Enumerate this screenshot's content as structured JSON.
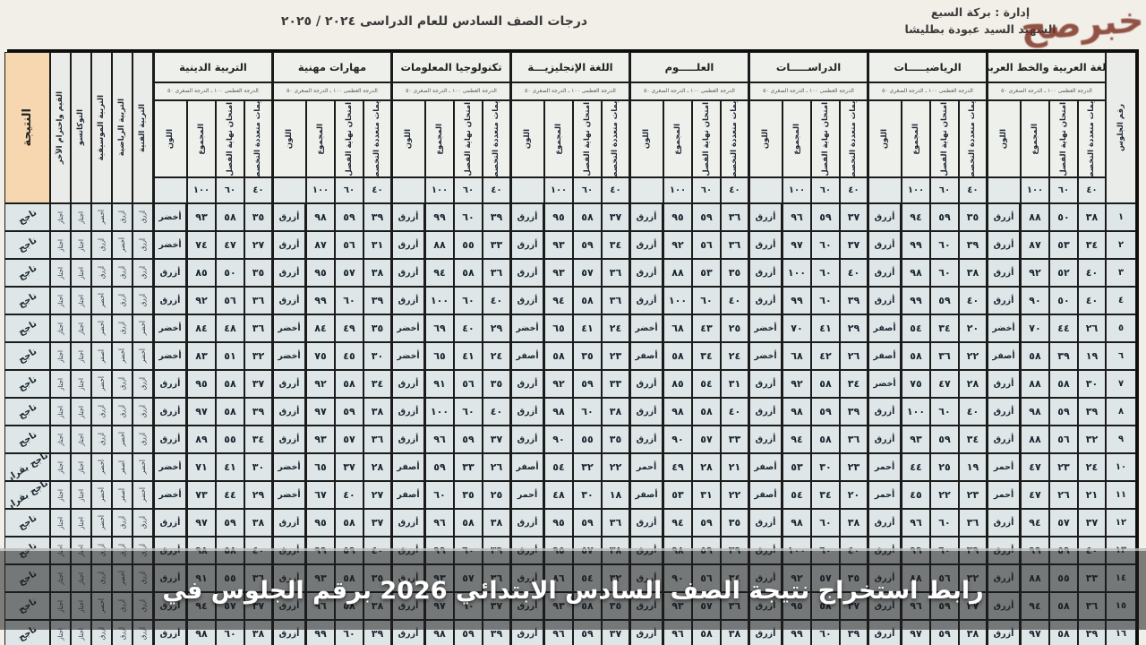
{
  "page": {
    "watermark": "خبرصح",
    "caption": "رابط استخراج نتيجة الصف السادس الابتدائي 2026 برقم الجلوس في"
  },
  "header": {
    "title": "درجات الصف السادس للعام الدراسى ٢٠٢٤ / ٢٠٢٥",
    "admin_line": "إدارة : بركة السبع",
    "school_line": "الشهيد السيد عبودة بطليشا"
  },
  "colors": {
    "paper": "#f1efe8",
    "cell": "#dfe6e7",
    "peach": "#f6d7af",
    "overlay": "rgba(30,30,30,0.55)",
    "watermark": "#7a2a1c"
  },
  "table": {
    "seat_header": "رقم الجلوس",
    "result_header": "النتيجة",
    "fine_print": "الدرجة العظمى ١٠٠ ـ الدرجة الصغرى ٥٠",
    "sub_headers": [
      "تقويمات متعددة التخصصات",
      "امتحان نهاية الفصل",
      "المجموع",
      "اللون"
    ],
    "max_marks": [
      "٤٠",
      "٦٠",
      "١٠٠",
      ""
    ],
    "subjects": [
      "اللغة العربية والخط العربي",
      "الرياضيـــــات",
      "الدراســـــات",
      "العلـــــوم",
      "اللغة الإنجليزيـــة",
      "تكنولوجيا المعلومات",
      "مهارات مهنية",
      "التربية الدينية"
    ],
    "activity_headers": [
      "التربية الفنية",
      "التربية الرياضية",
      "التربية الموسيقية",
      "التوكاتسو",
      "القيم واحترام الآخر"
    ],
    "rows": [
      {
        "seat": "١",
        "result": "ناجح",
        "activities": [
          "أزرق",
          "أزرق",
          "أخضر",
          "اجتاز",
          "اجتاز"
        ],
        "subjects": [
          [
            "٣٨",
            "٥٠",
            "٨٨",
            "أزرق"
          ],
          [
            "٣٥",
            "٥٩",
            "٩٤",
            "أزرق"
          ],
          [
            "٣٧",
            "٥٩",
            "٩٦",
            "أزرق"
          ],
          [
            "٣٦",
            "٥٩",
            "٩٥",
            "أزرق"
          ],
          [
            "٣٧",
            "٥٨",
            "٩٥",
            "أزرق"
          ],
          [
            "٣٩",
            "٦٠",
            "٩٩",
            "أزرق"
          ],
          [
            "٣٩",
            "٥٩",
            "٩٨",
            "أزرق"
          ],
          [
            "٣٥",
            "٥٨",
            "٩٣",
            "أخضر"
          ]
        ]
      },
      {
        "seat": "٢",
        "result": "ناجح",
        "activities": [
          "أزرق",
          "أخضر",
          "أزرق",
          "اجتاز",
          "اجتاز"
        ],
        "subjects": [
          [
            "٣٤",
            "٥٣",
            "٨٧",
            "أزرق"
          ],
          [
            "٣٩",
            "٦٠",
            "٩٩",
            "أزرق"
          ],
          [
            "٣٧",
            "٦٠",
            "٩٧",
            "أزرق"
          ],
          [
            "٣٦",
            "٥٦",
            "٩٢",
            "أزرق"
          ],
          [
            "٣٤",
            "٥٩",
            "٩٣",
            "أزرق"
          ],
          [
            "٣٣",
            "٥٥",
            "٨٨",
            "أزرق"
          ],
          [
            "٣١",
            "٥٦",
            "٨٧",
            "أزرق"
          ],
          [
            "٢٧",
            "٤٧",
            "٧٤",
            "أخضر"
          ]
        ]
      },
      {
        "seat": "٣",
        "result": "ناجح",
        "activities": [
          "أزرق",
          "أزرق",
          "أزرق",
          "اجتاز",
          "اجتاز"
        ],
        "subjects": [
          [
            "٤٠",
            "٥٢",
            "٩٢",
            "أزرق"
          ],
          [
            "٣٨",
            "٦٠",
            "٩٨",
            "أزرق"
          ],
          [
            "٤٠",
            "٦٠",
            "١٠٠",
            "أزرق"
          ],
          [
            "٣٥",
            "٥٣",
            "٨٨",
            "أزرق"
          ],
          [
            "٣٦",
            "٥٧",
            "٩٣",
            "أزرق"
          ],
          [
            "٣٦",
            "٥٨",
            "٩٤",
            "أزرق"
          ],
          [
            "٣٨",
            "٥٧",
            "٩٥",
            "أزرق"
          ],
          [
            "٣٥",
            "٥٠",
            "٨٥",
            "أزرق"
          ]
        ]
      },
      {
        "seat": "٤",
        "result": "ناجح",
        "activities": [
          "أزرق",
          "أزرق",
          "أخضر",
          "اجتاز",
          "اجتاز"
        ],
        "subjects": [
          [
            "٤٠",
            "٥٠",
            "٩٠",
            "أزرق"
          ],
          [
            "٤٠",
            "٥٩",
            "٩٩",
            "أزرق"
          ],
          [
            "٣٩",
            "٦٠",
            "٩٩",
            "أزرق"
          ],
          [
            "٤٠",
            "٦٠",
            "١٠٠",
            "أزرق"
          ],
          [
            "٣٦",
            "٥٨",
            "٩٤",
            "أزرق"
          ],
          [
            "٤٠",
            "٦٠",
            "١٠٠",
            "أزرق"
          ],
          [
            "٣٩",
            "٦٠",
            "٩٩",
            "أزرق"
          ],
          [
            "٣٦",
            "٥٦",
            "٩٢",
            "أزرق"
          ]
        ]
      },
      {
        "seat": "٥",
        "result": "ناجح",
        "activities": [
          "أخضر",
          "أزرق",
          "أخضر",
          "اجتاز",
          "اجتاز"
        ],
        "subjects": [
          [
            "٢٦",
            "٤٤",
            "٧٠",
            "أخضر"
          ],
          [
            "٢٠",
            "٣٤",
            "٥٤",
            "أصفر"
          ],
          [
            "٢٩",
            "٤١",
            "٧٠",
            "أخضر"
          ],
          [
            "٢٥",
            "٤٣",
            "٦٨",
            "أخضر"
          ],
          [
            "٢٤",
            "٤١",
            "٦٥",
            "أخضر"
          ],
          [
            "٢٩",
            "٤٠",
            "٦٩",
            "أخضر"
          ],
          [
            "٣٥",
            "٤٩",
            "٨٤",
            "أخضر"
          ],
          [
            "٣٦",
            "٤٨",
            "٨٤",
            "أخضر"
          ]
        ]
      },
      {
        "seat": "٦",
        "result": "ناجح",
        "activities": [
          "أخضر",
          "أخضر",
          "أصفر",
          "اجتاز",
          "اجتاز"
        ],
        "subjects": [
          [
            "١٩",
            "٣٩",
            "٥٨",
            "أصفر"
          ],
          [
            "٢٢",
            "٣٦",
            "٥٨",
            "أصفر"
          ],
          [
            "٢٦",
            "٤٢",
            "٦٨",
            "أخضر"
          ],
          [
            "٢٤",
            "٣٤",
            "٥٨",
            "أصفر"
          ],
          [
            "٢٣",
            "٣٥",
            "٥٨",
            "أصفر"
          ],
          [
            "٢٤",
            "٤١",
            "٦٥",
            "أخضر"
          ],
          [
            "٣٠",
            "٤٥",
            "٧٥",
            "أخضر"
          ],
          [
            "٣٢",
            "٥١",
            "٨٣",
            "أخضر"
          ]
        ]
      },
      {
        "seat": "٧",
        "result": "ناجح",
        "activities": [
          "أزرق",
          "أزرق",
          "أخضر",
          "اجتاز",
          "اجتاز"
        ],
        "subjects": [
          [
            "٣٠",
            "٥٨",
            "٨٨",
            "أزرق"
          ],
          [
            "٢٨",
            "٤٧",
            "٧٥",
            "أخضر"
          ],
          [
            "٣٤",
            "٥٨",
            "٩٢",
            "أزرق"
          ],
          [
            "٣١",
            "٥٤",
            "٨٥",
            "أزرق"
          ],
          [
            "٣٣",
            "٥٩",
            "٩٢",
            "أزرق"
          ],
          [
            "٣٥",
            "٥٦",
            "٩١",
            "أزرق"
          ],
          [
            "٣٤",
            "٥٨",
            "٩٢",
            "أزرق"
          ],
          [
            "٣٧",
            "٥٨",
            "٩٥",
            "أزرق"
          ]
        ]
      },
      {
        "seat": "٨",
        "result": "ناجح",
        "activities": [
          "أزرق",
          "أزرق",
          "أزرق",
          "اجتاز",
          "اجتاز"
        ],
        "subjects": [
          [
            "٣٩",
            "٥٩",
            "٩٨",
            "أزرق"
          ],
          [
            "٤٠",
            "٦٠",
            "١٠٠",
            "أزرق"
          ],
          [
            "٣٩",
            "٥٩",
            "٩٨",
            "أزرق"
          ],
          [
            "٤٠",
            "٥٨",
            "٩٨",
            "أزرق"
          ],
          [
            "٣٨",
            "٦٠",
            "٩٨",
            "أزرق"
          ],
          [
            "٤٠",
            "٦٠",
            "١٠٠",
            "أزرق"
          ],
          [
            "٣٨",
            "٥٩",
            "٩٧",
            "أزرق"
          ],
          [
            "٣٩",
            "٥٨",
            "٩٧",
            "أزرق"
          ]
        ]
      },
      {
        "seat": "٩",
        "result": "ناجح",
        "activities": [
          "أزرق",
          "أخضر",
          "أزرق",
          "اجتاز",
          "اجتاز"
        ],
        "subjects": [
          [
            "٣٢",
            "٥٦",
            "٨٨",
            "أزرق"
          ],
          [
            "٣٤",
            "٥٩",
            "٩٣",
            "أزرق"
          ],
          [
            "٣٦",
            "٥٨",
            "٩٤",
            "أزرق"
          ],
          [
            "٣٣",
            "٥٧",
            "٩٠",
            "أزرق"
          ],
          [
            "٣٥",
            "٥٥",
            "٩٠",
            "أزرق"
          ],
          [
            "٣٧",
            "٥٩",
            "٩٦",
            "أزرق"
          ],
          [
            "٣٦",
            "٥٧",
            "٩٣",
            "أزرق"
          ],
          [
            "٣٤",
            "٥٥",
            "٨٩",
            "أزرق"
          ]
        ]
      },
      {
        "seat": "١٠",
        "result": "ناجح بقرار",
        "activities": [
          "أخضر",
          "أصفر",
          "أخضر",
          "اجتاز",
          "اجتاز"
        ],
        "subjects": [
          [
            "٢٤",
            "٢٣",
            "٤٧",
            "أحمر"
          ],
          [
            "١٩",
            "٢٥",
            "٤٤",
            "أحمر"
          ],
          [
            "٢٣",
            "٣٠",
            "٥٣",
            "أصفر"
          ],
          [
            "٢١",
            "٢٨",
            "٤٩",
            "أحمر"
          ],
          [
            "٢٢",
            "٣٢",
            "٥٤",
            "أصفر"
          ],
          [
            "٢٦",
            "٣٣",
            "٥٩",
            "أصفر"
          ],
          [
            "٢٨",
            "٣٧",
            "٦٥",
            "أخضر"
          ],
          [
            "٣٠",
            "٤١",
            "٧١",
            "أخضر"
          ]
        ]
      },
      {
        "seat": "١١",
        "result": "ناجح بقرار",
        "activities": [
          "أخضر",
          "أصفر",
          "أخضر",
          "اجتاز",
          "اجتاز"
        ],
        "subjects": [
          [
            "٢١",
            "٢٦",
            "٤٧",
            "أحمر"
          ],
          [
            "٢٣",
            "٢٢",
            "٤٥",
            "أحمر"
          ],
          [
            "٢٠",
            "٣٤",
            "٥٤",
            "أصفر"
          ],
          [
            "٢٢",
            "٣١",
            "٥٣",
            "أصفر"
          ],
          [
            "١٨",
            "٣٠",
            "٤٨",
            "أحمر"
          ],
          [
            "٢٥",
            "٣٥",
            "٦٠",
            "أصفر"
          ],
          [
            "٢٧",
            "٤٠",
            "٦٧",
            "أخضر"
          ],
          [
            "٢٩",
            "٤٤",
            "٧٣",
            "أخضر"
          ]
        ]
      },
      {
        "seat": "١٢",
        "result": "ناجح",
        "activities": [
          "أزرق",
          "أزرق",
          "أخضر",
          "اجتاز",
          "اجتاز"
        ],
        "subjects": [
          [
            "٣٧",
            "٥٧",
            "٩٤",
            "أزرق"
          ],
          [
            "٣٦",
            "٦٠",
            "٩٦",
            "أزرق"
          ],
          [
            "٣٨",
            "٦٠",
            "٩٨",
            "أزرق"
          ],
          [
            "٣٥",
            "٥٩",
            "٩٤",
            "أزرق"
          ],
          [
            "٣٦",
            "٥٩",
            "٩٥",
            "أزرق"
          ],
          [
            "٣٨",
            "٥٨",
            "٩٦",
            "أزرق"
          ],
          [
            "٣٧",
            "٥٨",
            "٩٥",
            "أزرق"
          ],
          [
            "٣٨",
            "٥٩",
            "٩٧",
            "أزرق"
          ]
        ]
      },
      {
        "seat": "١٣",
        "result": "ناجح",
        "activities": [
          "أزرق",
          "أزرق",
          "أزرق",
          "اجتاز",
          "اجتاز"
        ],
        "subjects": [
          [
            "٤٠",
            "٥٩",
            "٩٩",
            "أزرق"
          ],
          [
            "٣٩",
            "٦٠",
            "٩٩",
            "أزرق"
          ],
          [
            "٤٠",
            "٦٠",
            "١٠٠",
            "أزرق"
          ],
          [
            "٣٩",
            "٥٩",
            "٩٨",
            "أزرق"
          ],
          [
            "٣٨",
            "٥٧",
            "٩٥",
            "أزرق"
          ],
          [
            "٣٩",
            "٦٠",
            "٩٩",
            "أزرق"
          ],
          [
            "٤٠",
            "٥٩",
            "٩٩",
            "أزرق"
          ],
          [
            "٤٠",
            "٥٨",
            "٩٨",
            "أزرق"
          ]
        ]
      },
      {
        "seat": "١٤",
        "result": "ناجح",
        "activities": [
          "أزرق",
          "أخضر",
          "أزرق",
          "اجتاز",
          "اجتاز"
        ],
        "subjects": [
          [
            "٣٣",
            "٥٥",
            "٨٨",
            "أزرق"
          ],
          [
            "٣٢",
            "٥٦",
            "٨٨",
            "أزرق"
          ],
          [
            "٣٥",
            "٥٧",
            "٩٢",
            "أزرق"
          ],
          [
            "٣٤",
            "٥٦",
            "٩٠",
            "أزرق"
          ],
          [
            "٣٢",
            "٥٤",
            "٨٦",
            "أزرق"
          ],
          [
            "٣٦",
            "٥٧",
            "٩٣",
            "أزرق"
          ],
          [
            "٣٥",
            "٥٨",
            "٩٣",
            "أزرق"
          ],
          [
            "٣٦",
            "٥٥",
            "٩١",
            "أزرق"
          ]
        ]
      },
      {
        "seat": "١٥",
        "result": "ناجح",
        "activities": [
          "أزرق",
          "أزرق",
          "أخضر",
          "اجتاز",
          "اجتاز"
        ],
        "subjects": [
          [
            "٣٦",
            "٥٨",
            "٩٤",
            "أزرق"
          ],
          [
            "٣٧",
            "٥٩",
            "٩٦",
            "أزرق"
          ],
          [
            "٣٧",
            "٥٨",
            "٩٥",
            "أزرق"
          ],
          [
            "٣٦",
            "٥٧",
            "٩٣",
            "أزرق"
          ],
          [
            "٣٥",
            "٥٨",
            "٩٣",
            "أزرق"
          ],
          [
            "٣٧",
            "٦٠",
            "٩٧",
            "أزرق"
          ],
          [
            "٣٨",
            "٥٨",
            "٩٦",
            "أزرق"
          ],
          [
            "٣٧",
            "٥٧",
            "٩٤",
            "أزرق"
          ]
        ]
      },
      {
        "seat": "١٦",
        "result": "ناجح",
        "activities": [
          "أزرق",
          "أزرق",
          "أزرق",
          "اجتاز",
          "اجتاز"
        ],
        "subjects": [
          [
            "٣٩",
            "٥٨",
            "٩٧",
            "أزرق"
          ],
          [
            "٣٨",
            "٥٩",
            "٩٧",
            "أزرق"
          ],
          [
            "٣٩",
            "٦٠",
            "٩٩",
            "أزرق"
          ],
          [
            "٣٨",
            "٥٨",
            "٩٦",
            "أزرق"
          ],
          [
            "٣٧",
            "٥٩",
            "٩٦",
            "أزرق"
          ],
          [
            "٣٩",
            "٥٩",
            "٩٨",
            "أزرق"
          ],
          [
            "٣٩",
            "٦٠",
            "٩٩",
            "أزرق"
          ],
          [
            "٣٨",
            "٦٠",
            "٩٨",
            "أزرق"
          ]
        ]
      }
    ]
  }
}
